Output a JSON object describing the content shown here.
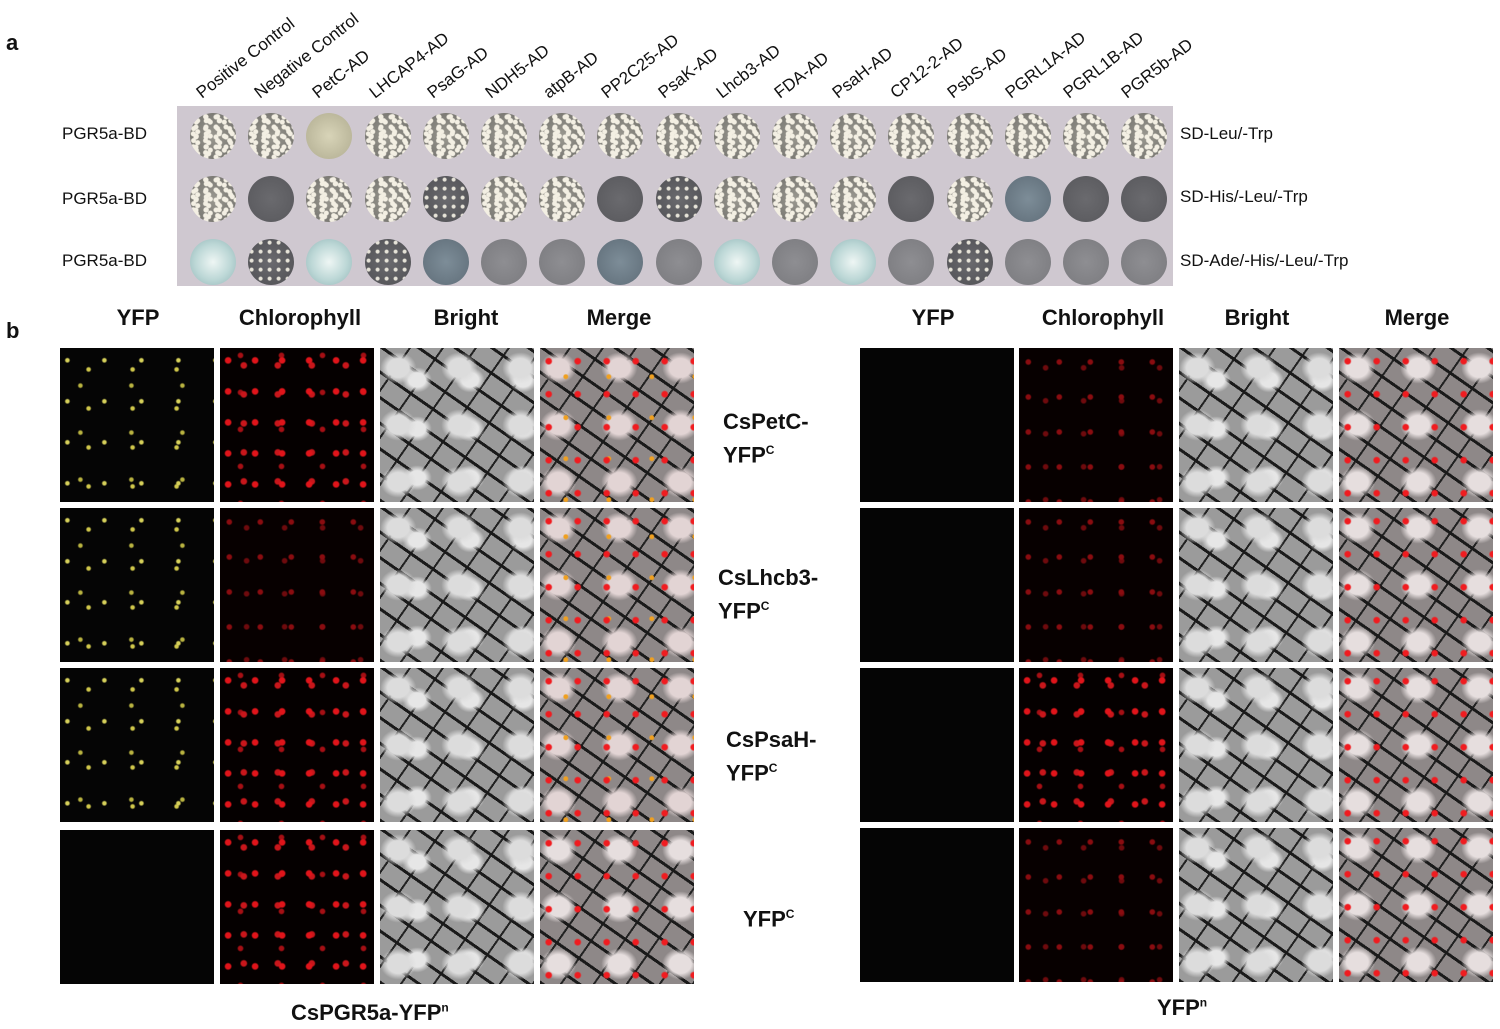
{
  "panel_a": {
    "letter": "a",
    "columns": [
      "Positive Control",
      "Negative Control",
      "PetC-AD",
      "LHCAP4-AD",
      "PsaG-AD",
      "NDH5-AD",
      "atpB-AD",
      "PP2C25-AD",
      "PsaK-AD",
      "Lhcb3-AD",
      "FDA-AD",
      "PsaH-AD",
      "CP12-2-AD",
      "PsbS-AD",
      "PGRL1A-AD",
      "PGRL1B-AD",
      "PGR5b-AD"
    ],
    "rows": [
      {
        "bait": "PGR5a-BD",
        "medium": "SD-Leu/-Trp"
      },
      {
        "bait": "PGR5a-BD",
        "medium": "SD-His/-Leu/-Trp"
      },
      {
        "bait": "PGR5a-BD",
        "medium": "SD-Ade/-His/-Leu/-Trp"
      }
    ]
  },
  "panel_b": {
    "letter": "b",
    "channel_headers": [
      "YFP",
      "Chlorophyll",
      "Bright",
      "Merge"
    ],
    "constructs": [
      {
        "name": "CsPetC-",
        "tag": "YFP",
        "sup": "C"
      },
      {
        "name": "CsLhcb3-",
        "tag": "YFP",
        "sup": "C"
      },
      {
        "name": "CsPsaH-",
        "tag": "YFP",
        "sup": "C"
      },
      {
        "name": "",
        "tag": "YFP",
        "sup": "C"
      }
    ],
    "left_group": {
      "name": "CsPGR5a-YFP",
      "sup": "n"
    },
    "right_group": {
      "name": "YFP",
      "sup": "n"
    }
  }
}
